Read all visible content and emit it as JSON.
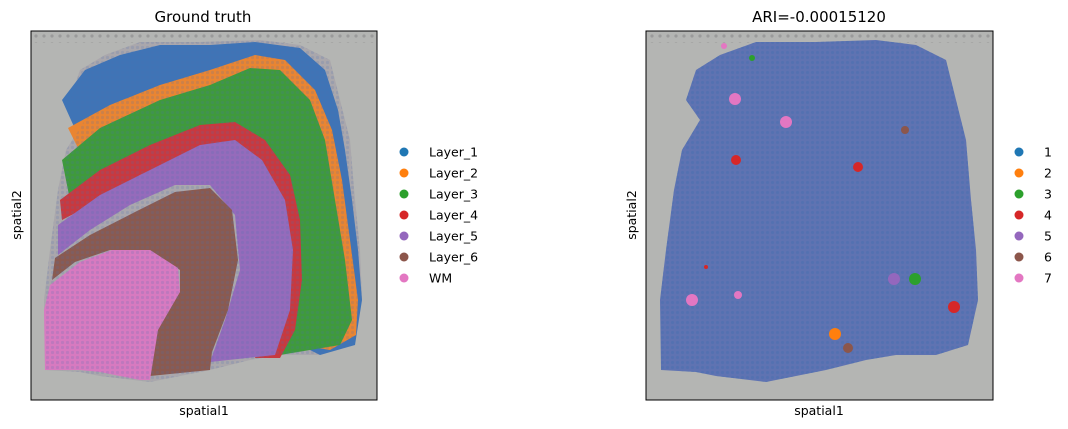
{
  "chart_data": [
    {
      "type": "scatter",
      "title": "Ground truth",
      "xlabel": "spatial1",
      "ylabel": "spatial2",
      "grid": false,
      "legend_position": "right",
      "legend": [
        {
          "label": "Layer_1",
          "color": "#1f77b4"
        },
        {
          "label": "Layer_2",
          "color": "#ff7f0e"
        },
        {
          "label": "Layer_3",
          "color": "#2ca02c"
        },
        {
          "label": "Layer_4",
          "color": "#d62728"
        },
        {
          "label": "Layer_5",
          "color": "#9467bd"
        },
        {
          "label": "Layer_6",
          "color": "#8c564b"
        },
        {
          "label": "WM",
          "color": "#e377c2"
        }
      ]
    },
    {
      "type": "scatter",
      "title": "ARI=-0.00015120",
      "xlabel": "spatial1",
      "ylabel": "spatial2",
      "grid": false,
      "legend_position": "right",
      "legend": [
        {
          "label": "1",
          "color": "#1f77b4"
        },
        {
          "label": "2",
          "color": "#ff7f0e"
        },
        {
          "label": "3",
          "color": "#2ca02c"
        },
        {
          "label": "4",
          "color": "#d62728"
        },
        {
          "label": "5",
          "color": "#9467bd"
        },
        {
          "label": "6",
          "color": "#8c564b"
        },
        {
          "label": "7",
          "color": "#e377c2"
        }
      ]
    }
  ]
}
